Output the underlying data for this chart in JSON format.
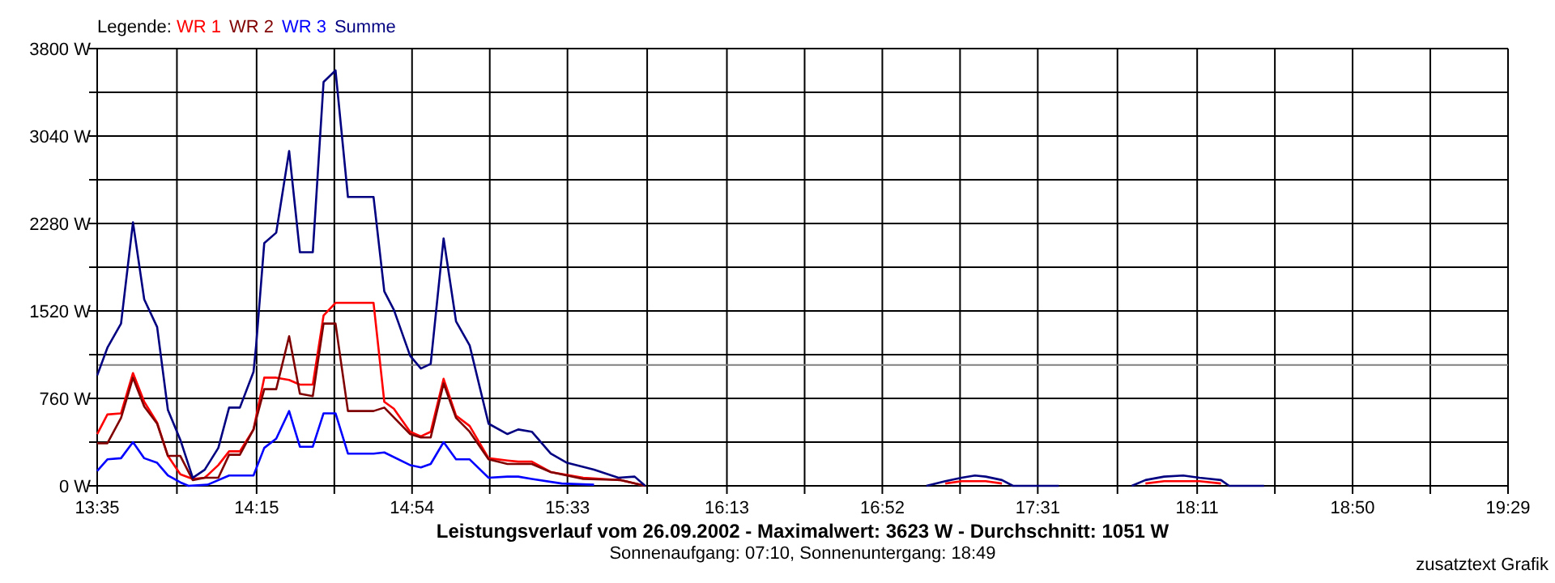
{
  "chart_data": {
    "type": "line",
    "title": "Leistungsverlauf vom 26.09.2002 - Maximalwert: 3623 W - Durchschnitt: 1051 W",
    "subtitle": "Sonnenaufgang: 07:10, Sonnenuntergang: 18:49",
    "legend_title": "Legende:",
    "legend": "top left",
    "grid": true,
    "marker": "none",
    "annotations": [
      "zusatztext Grafik"
    ],
    "ref_lines": [
      {
        "axis": "y",
        "value": 1051,
        "color": "#808080"
      }
    ],
    "xlim": [
      13.5833,
      19.4833
    ],
    "xticks": [
      {
        "value": 13.5833,
        "label": "13:35"
      },
      {
        "value": 13.9167,
        "label": null
      },
      {
        "value": 14.25,
        "label": "14:15"
      },
      {
        "value": 14.575,
        "label": null
      },
      {
        "value": 14.9,
        "label": "14:54"
      },
      {
        "value": 15.225,
        "label": null
      },
      {
        "value": 15.55,
        "label": "15:33"
      },
      {
        "value": 15.8833,
        "label": null
      },
      {
        "value": 16.2167,
        "label": "16:13"
      },
      {
        "value": 16.5417,
        "label": null
      },
      {
        "value": 16.8667,
        "label": "16:52"
      },
      {
        "value": 17.1917,
        "label": null
      },
      {
        "value": 17.5167,
        "label": "17:31"
      },
      {
        "value": 17.85,
        "label": null
      },
      {
        "value": 18.1833,
        "label": "18:11"
      },
      {
        "value": 18.5083,
        "label": null
      },
      {
        "value": 18.8333,
        "label": "18:50"
      },
      {
        "value": 19.1583,
        "label": null
      },
      {
        "value": 19.4833,
        "label": "19:29"
      }
    ],
    "ylim": [
      0,
      3800
    ],
    "yticks": [
      {
        "value": 0,
        "label": "0 W"
      },
      {
        "value": 380,
        "label": null
      },
      {
        "value": 760,
        "label": "760 W"
      },
      {
        "value": 1140,
        "label": null
      },
      {
        "value": 1520,
        "label": "1520 W"
      },
      {
        "value": 1900,
        "label": null
      },
      {
        "value": 2280,
        "label": "2280 W"
      },
      {
        "value": 2660,
        "label": null
      },
      {
        "value": 3040,
        "label": "3040 W"
      },
      {
        "value": 3420,
        "label": null
      },
      {
        "value": 3800,
        "label": "3800 W"
      }
    ],
    "series": [
      {
        "name": "WR 1",
        "color": "#ff0000",
        "x": [
          13.5833,
          13.626,
          13.683,
          13.733,
          13.78,
          13.834,
          13.879,
          13.931,
          13.983,
          14.033,
          14.09,
          14.135,
          14.18,
          14.237,
          14.282,
          14.332,
          14.386,
          14.431,
          14.485,
          14.53,
          14.58,
          14.632,
          14.739,
          14.784,
          14.824,
          14.892,
          14.937,
          14.978,
          15.032,
          15.084,
          15.141,
          15.22,
          15.299,
          15.344,
          15.401,
          15.48,
          15.616,
          15.774,
          15.875,
          null,
          17.13,
          17.198,
          17.299,
          17.367,
          null,
          17.967,
          18.045,
          18.125,
          18.193,
          18.283
        ],
        "values": [
          450,
          620,
          630,
          980,
          730,
          550,
          260,
          100,
          60,
          70,
          180,
          300,
          300,
          490,
          940,
          940,
          920,
          880,
          880,
          1480,
          1590,
          1590,
          1590,
          730,
          670,
          470,
          430,
          470,
          930,
          610,
          520,
          240,
          220,
          210,
          210,
          120,
          70,
          50,
          0,
          null,
          20,
          40,
          40,
          20,
          null,
          20,
          40,
          40,
          40,
          20
        ]
      },
      {
        "name": "WR 2",
        "color": "#800000",
        "x": [
          13.5833,
          13.626,
          13.683,
          13.733,
          13.78,
          13.834,
          13.879,
          13.931,
          13.983,
          14.033,
          14.09,
          14.135,
          14.18,
          14.237,
          14.282,
          14.332,
          14.386,
          14.431,
          14.485,
          14.53,
          14.58,
          14.632,
          14.739,
          14.784,
          14.892,
          14.937,
          14.978,
          15.032,
          15.084,
          15.141,
          15.22,
          15.299,
          15.344,
          15.401,
          15.48,
          15.616,
          15.774,
          15.875
        ],
        "values": [
          370,
          370,
          590,
          940,
          690,
          540,
          260,
          260,
          50,
          70,
          70,
          270,
          270,
          490,
          840,
          840,
          1300,
          800,
          780,
          1410,
          1410,
          650,
          650,
          680,
          450,
          420,
          420,
          890,
          590,
          470,
          230,
          190,
          190,
          190,
          120,
          60,
          50,
          0
        ]
      },
      {
        "name": "WR 3",
        "color": "#0000ff",
        "x": [
          13.5833,
          13.626,
          13.683,
          13.733,
          13.78,
          13.834,
          13.879,
          13.931,
          13.965,
          14.045,
          14.135,
          14.237,
          14.282,
          14.332,
          14.386,
          14.431,
          14.485,
          14.53,
          14.58,
          14.632,
          14.739,
          14.784,
          14.892,
          14.937,
          14.978,
          15.032,
          15.084,
          15.141,
          15.22,
          15.299,
          15.344,
          15.401,
          15.526,
          15.661
        ],
        "values": [
          130,
          230,
          240,
          380,
          240,
          200,
          90,
          30,
          0,
          10,
          90,
          90,
          330,
          410,
          650,
          340,
          340,
          630,
          630,
          280,
          280,
          290,
          180,
          160,
          190,
          380,
          230,
          230,
          70,
          80,
          80,
          60,
          20,
          10
        ]
      },
      {
        "name": "Summe",
        "color": "#000080",
        "x": [
          13.5833,
          13.626,
          13.683,
          13.733,
          13.78,
          13.834,
          13.879,
          13.931,
          13.983,
          14.033,
          14.09,
          14.135,
          14.18,
          14.237,
          14.248,
          14.282,
          14.332,
          14.386,
          14.431,
          14.485,
          14.53,
          14.58,
          14.632,
          14.739,
          14.784,
          14.824,
          14.892,
          14.937,
          14.978,
          15.032,
          15.084,
          15.141,
          15.22,
          15.299,
          15.344,
          15.401,
          15.48,
          15.548,
          15.661,
          15.763,
          15.831,
          15.875,
          null,
          17.051,
          17.13,
          17.198,
          17.254,
          17.299,
          17.367,
          17.413,
          17.458,
          17.605,
          null,
          17.91,
          17.967,
          18.045,
          18.125,
          18.193,
          18.283,
          18.317,
          18.463
        ],
        "values": [
          960,
          1200,
          1410,
          2290,
          1620,
          1380,
          660,
          400,
          70,
          140,
          330,
          680,
          680,
          990,
          1220,
          2110,
          2200,
          2910,
          2030,
          2030,
          3510,
          3610,
          2510,
          2510,
          1690,
          1530,
          1130,
          1020,
          1060,
          2150,
          1430,
          1220,
          540,
          450,
          490,
          470,
          280,
          200,
          140,
          70,
          80,
          0,
          null,
          0,
          40,
          70,
          90,
          80,
          50,
          0,
          0,
          0,
          null,
          0,
          50,
          80,
          90,
          70,
          50,
          0,
          0
        ]
      }
    ]
  }
}
